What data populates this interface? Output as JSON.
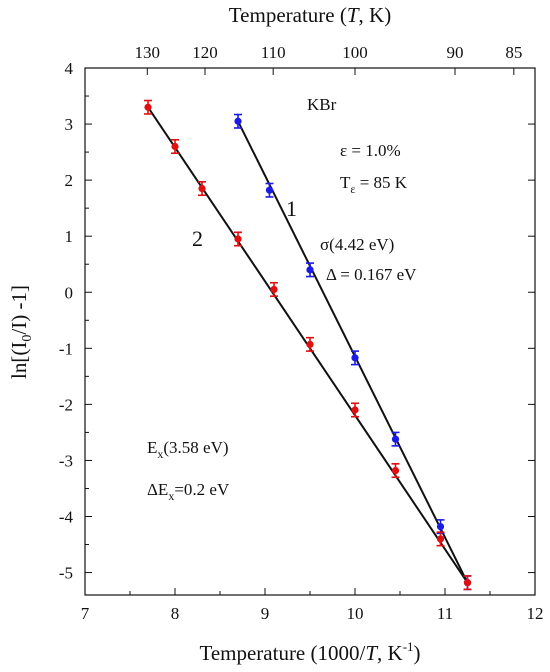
{
  "chart_data": {
    "type": "scatter",
    "xlabel": "Temperature (1000/",
    "xlabel_italic": "T",
    "xlabel_unit": ", K",
    "xlabel_sup": "-1",
    "xlabel_close": ")",
    "top_xlabel": "Temperature (",
    "top_xlabel_italic": "T",
    "top_xlabel_unit": ", K)",
    "ylabel": "ln[(I",
    "ylabel_sub": "0",
    "ylabel_tail": "/I) -1]",
    "xlim": [
      7,
      12
    ],
    "ylim": [
      -5.4,
      4
    ],
    "x_ticks": [
      7,
      8,
      9,
      10,
      11,
      12
    ],
    "y_ticks": [
      4,
      3,
      2,
      1,
      0,
      -1,
      -2,
      -3,
      -4,
      -5
    ],
    "top_ticks": [
      130,
      120,
      110,
      100,
      90,
      85
    ],
    "top_tick_labels": [
      "130",
      "120",
      "110",
      "100",
      "90",
      "85"
    ],
    "grid": false,
    "annotations": {
      "material": "KBr",
      "strain": "ε = 1.0%",
      "t_eps_main": "T",
      "t_eps_sub": "ε",
      "t_eps_val": " = 85 K",
      "sigma": "σ(4.42 eV)",
      "delta": "Δ = 0.167 eV",
      "ex_main": "E",
      "ex_sub": "x",
      "ex_val": "(3.58 eV)",
      "dex_main": "ΔE",
      "dex_sub": "x",
      "dex_val": "=0.2 eV"
    },
    "series": [
      {
        "name": "1",
        "color": "#1a1ae6",
        "x": [
          8.7,
          9.05,
          9.5,
          10.0,
          10.45,
          10.95,
          11.25
        ],
        "y": [
          3.05,
          1.82,
          0.4,
          -1.17,
          -2.62,
          -4.18,
          -5.18
        ],
        "err": 0.12,
        "fit": [
          [
            8.7,
            3.05
          ],
          [
            11.25,
            -5.18
          ]
        ]
      },
      {
        "name": "2",
        "color": "#e01010",
        "x": [
          7.7,
          8.0,
          8.3,
          8.7,
          9.1,
          9.5,
          10.0,
          10.45,
          10.95,
          11.25
        ],
        "y": [
          3.3,
          2.6,
          1.85,
          0.95,
          0.05,
          -0.93,
          -2.1,
          -3.18,
          -4.4,
          -5.18
        ],
        "err": 0.12,
        "fit": [
          [
            7.7,
            3.3
          ],
          [
            11.25,
            -5.18
          ]
        ]
      }
    ]
  }
}
